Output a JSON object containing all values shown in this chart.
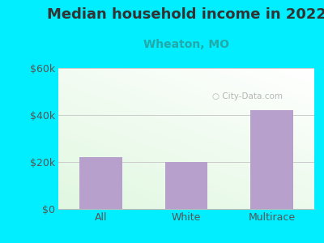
{
  "title": "Median household income in 2022",
  "subtitle": "Wheaton, MO",
  "categories": [
    "All",
    "White",
    "Multirace"
  ],
  "values": [
    22000,
    20000,
    42000
  ],
  "bar_color": "#b8a0cc",
  "ylim": [
    0,
    60000
  ],
  "yticks": [
    0,
    20000,
    40000,
    60000
  ],
  "ytick_labels": [
    "$0",
    "$20k",
    "$40k",
    "$60k"
  ],
  "bg_outer": "#00eeff",
  "plot_bg_top": "#f0f8f0",
  "plot_bg_bottom": "#e8f5e0",
  "title_color": "#333333",
  "subtitle_color": "#22aaaa",
  "watermark": "City-Data.com",
  "watermark_color": "#aaaaaa",
  "title_fontsize": 13,
  "subtitle_fontsize": 10,
  "tick_fontsize": 9,
  "xlabel_fontsize": 9,
  "grid_color": "#cccccc"
}
